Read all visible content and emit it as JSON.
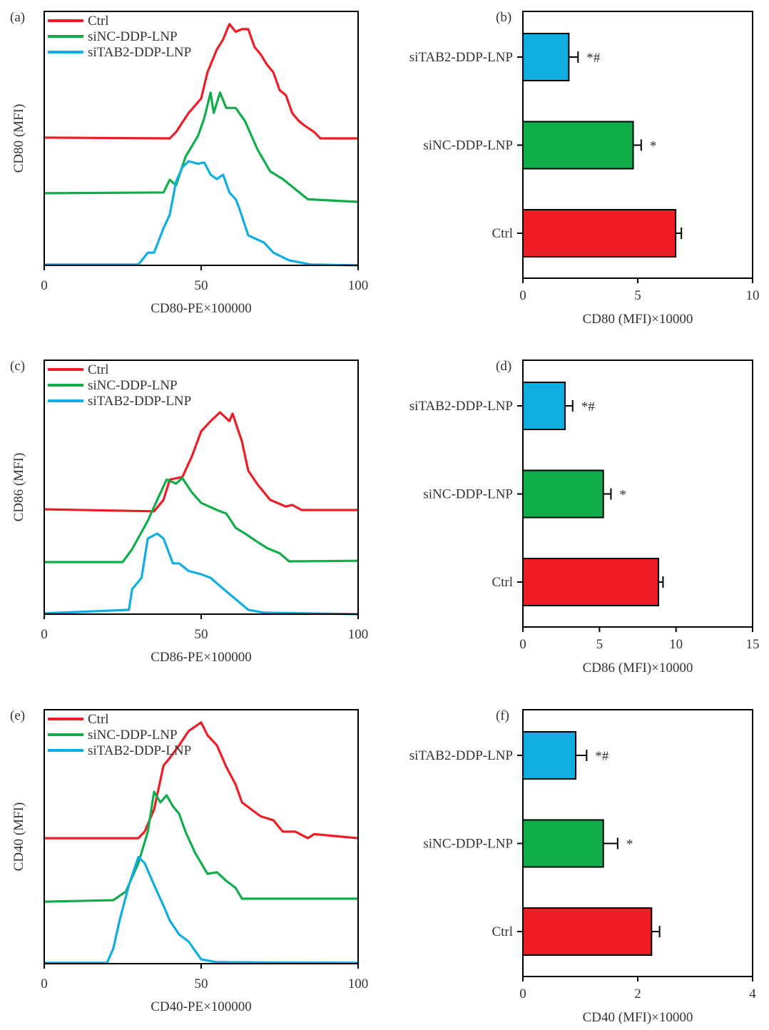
{
  "colors": {
    "Ctrl": "#ee1c25",
    "siNC-DDP-LNP": "#12ad4b",
    "siTAB2-DDP-LNP": "#0eaee3"
  },
  "chart_data": [
    {
      "panel": "(a)",
      "type": "line",
      "xlabel": "CD80-PE×100000",
      "ylabel": "CD80 (MFI)",
      "xlim": [
        0,
        100
      ],
      "xticks": [
        "0",
        "50",
        "100"
      ],
      "legend": "top-left",
      "grid": false,
      "series": [
        {
          "name": "Ctrl",
          "x": [
            0,
            40,
            42,
            46,
            50,
            52,
            55,
            57,
            59,
            61,
            63,
            65,
            67,
            69,
            71,
            73,
            75,
            77,
            79,
            81,
            83,
            86,
            88,
            100
          ],
          "y": [
            50.3,
            50,
            52.5,
            60,
            65.7,
            76,
            85,
            89,
            95,
            92,
            93,
            93,
            86,
            83,
            79,
            76,
            69,
            67,
            60,
            57,
            55,
            52.5,
            50,
            50
          ]
        },
        {
          "name": "siNC-DDP-LNP",
          "x": [
            0,
            38,
            40,
            42,
            45,
            49,
            51,
            53,
            54,
            56,
            58,
            61,
            64,
            68,
            72,
            76,
            80,
            84,
            100
          ],
          "y": [
            28.4,
            28.7,
            33.7,
            31.5,
            42.7,
            51,
            58,
            68,
            60,
            68,
            62,
            62,
            56.7,
            45.5,
            37,
            34,
            30,
            26,
            25
          ]
        },
        {
          "name": "siTAB2-DDP-LNP",
          "x": [
            0,
            30,
            33,
            35,
            38,
            40,
            42,
            44,
            46,
            49,
            51,
            53,
            55,
            57,
            59,
            61,
            62,
            65,
            70,
            73,
            78,
            85,
            100
          ],
          "y": [
            0.3,
            0.3,
            5,
            5,
            14.6,
            20,
            33,
            38.5,
            41,
            40,
            40.5,
            35.7,
            34,
            35.7,
            28.7,
            26,
            23,
            11.8,
            9,
            5,
            2,
            0.3,
            0
          ]
        }
      ]
    },
    {
      "panel": "(b)",
      "type": "bar",
      "orientation": "horizontal",
      "xlabel": "CD80 (MFI)×10000",
      "xlim": [
        0,
        10
      ],
      "xticks": [
        "0",
        "5",
        "10"
      ],
      "categories": [
        "siTAB2-DDP-LNP",
        "siNC-DDP-LNP",
        "Ctrl"
      ],
      "values": [
        2.0,
        4.8,
        6.65
      ],
      "errors": [
        0.4,
        0.35,
        0.25
      ],
      "annotations": [
        "*#",
        "*",
        ""
      ]
    },
    {
      "panel": "(c)",
      "type": "line",
      "xlabel": "CD86-PE×100000",
      "ylabel": "CD86 (MFI)",
      "xlim": [
        0,
        100
      ],
      "xticks": [
        "0",
        "50",
        "100"
      ],
      "legend": "top-left",
      "grid": false,
      "series": [
        {
          "name": "Ctrl",
          "x": [
            0,
            35,
            38,
            40,
            44,
            47,
            50,
            53,
            56,
            59,
            60,
            63,
            65,
            68,
            72,
            77,
            79,
            82,
            100
          ],
          "y": [
            41.3,
            40.5,
            45,
            53,
            54,
            62,
            72,
            76,
            79.5,
            76,
            79,
            68,
            56.5,
            51,
            45,
            42.4,
            43,
            41,
            41
          ]
        },
        {
          "name": "siNC-DDP-LNP",
          "x": [
            0,
            25,
            28,
            33,
            36,
            39,
            42,
            44,
            47,
            50,
            55,
            58,
            61,
            64,
            68,
            71,
            75,
            78,
            100
          ],
          "y": [
            20.5,
            20.5,
            25.6,
            36.8,
            45,
            53,
            51.4,
            53.6,
            48,
            43.8,
            41,
            39.6,
            34,
            31.7,
            28.4,
            26,
            24,
            20.8,
            21
          ]
        },
        {
          "name": "siTAB2-DDP-LNP",
          "x": [
            0,
            27,
            28,
            31,
            33,
            36,
            38,
            41,
            43,
            46,
            50,
            53,
            57,
            61,
            65,
            70,
            100
          ],
          "y": [
            0.3,
            1.7,
            9.8,
            14.3,
            29.8,
            31.7,
            29.8,
            20,
            20,
            17,
            15.7,
            14.3,
            10,
            5.9,
            1.7,
            0.6,
            0
          ]
        }
      ]
    },
    {
      "panel": "(d)",
      "type": "bar",
      "orientation": "horizontal",
      "xlabel": "CD86 (MFI)×10000",
      "xlim": [
        0,
        15
      ],
      "xticks": [
        "0",
        "5",
        "10",
        "15"
      ],
      "categories": [
        "siTAB2-DDP-LNP",
        "siNC-DDP-LNP",
        "Ctrl"
      ],
      "values": [
        2.75,
        5.25,
        8.85
      ],
      "errors": [
        0.5,
        0.5,
        0.3
      ],
      "annotations": [
        "*#",
        "*",
        ""
      ]
    },
    {
      "panel": "(e)",
      "type": "line",
      "xlabel": "CD40-PE×100000",
      "ylabel": "CD40 (MFI)",
      "xlim": [
        0,
        100
      ],
      "xticks": [
        "0",
        "50",
        "100"
      ],
      "legend": "top-left",
      "grid": false,
      "series": [
        {
          "name": "Ctrl",
          "x": [
            0,
            30,
            32,
            35,
            38,
            40,
            43,
            46,
            50,
            52,
            55,
            58,
            61,
            63,
            66,
            69,
            73,
            76,
            80,
            84,
            86,
            100
          ],
          "y": [
            49.4,
            49.4,
            52,
            60.7,
            78,
            81,
            86,
            91.6,
            95,
            90,
            86,
            77.5,
            70.5,
            63.5,
            60.7,
            58,
            56.5,
            52,
            52,
            49.4,
            51,
            49.4
          ]
        },
        {
          "name": "siNC-DDP-LNP",
          "x": [
            0,
            22,
            26,
            30,
            33,
            35,
            37,
            39,
            41,
            43,
            45,
            48,
            52,
            55,
            58,
            61,
            63,
            100
          ],
          "y": [
            24.4,
            25,
            28.4,
            39.6,
            52,
            67.7,
            63.5,
            66.3,
            62,
            59,
            52,
            43.8,
            35.4,
            36,
            32.6,
            29.8,
            25.6,
            25.6
          ]
        },
        {
          "name": "siTAB2-DDP-LNP",
          "x": [
            0,
            20,
            22,
            24,
            27,
            30,
            32,
            35,
            38,
            40,
            43,
            46,
            50,
            55,
            100
          ],
          "y": [
            0.3,
            0.3,
            5.9,
            17,
            31,
            42,
            39.6,
            31,
            22.8,
            17,
            11.5,
            8.7,
            1.7,
            0.6,
            0.3
          ]
        }
      ]
    },
    {
      "panel": "(f)",
      "type": "bar",
      "orientation": "horizontal",
      "xlabel": "CD40 (MFI)×10000",
      "xlim": [
        0,
        4
      ],
      "xticks": [
        "0",
        "2",
        "4"
      ],
      "categories": [
        "siTAB2-DDP-LNP",
        "siNC-DDP-LNP",
        "Ctrl"
      ],
      "values": [
        0.92,
        1.4,
        2.24
      ],
      "errors": [
        0.19,
        0.25,
        0.14
      ],
      "annotations": [
        "*#",
        "*",
        ""
      ]
    }
  ]
}
